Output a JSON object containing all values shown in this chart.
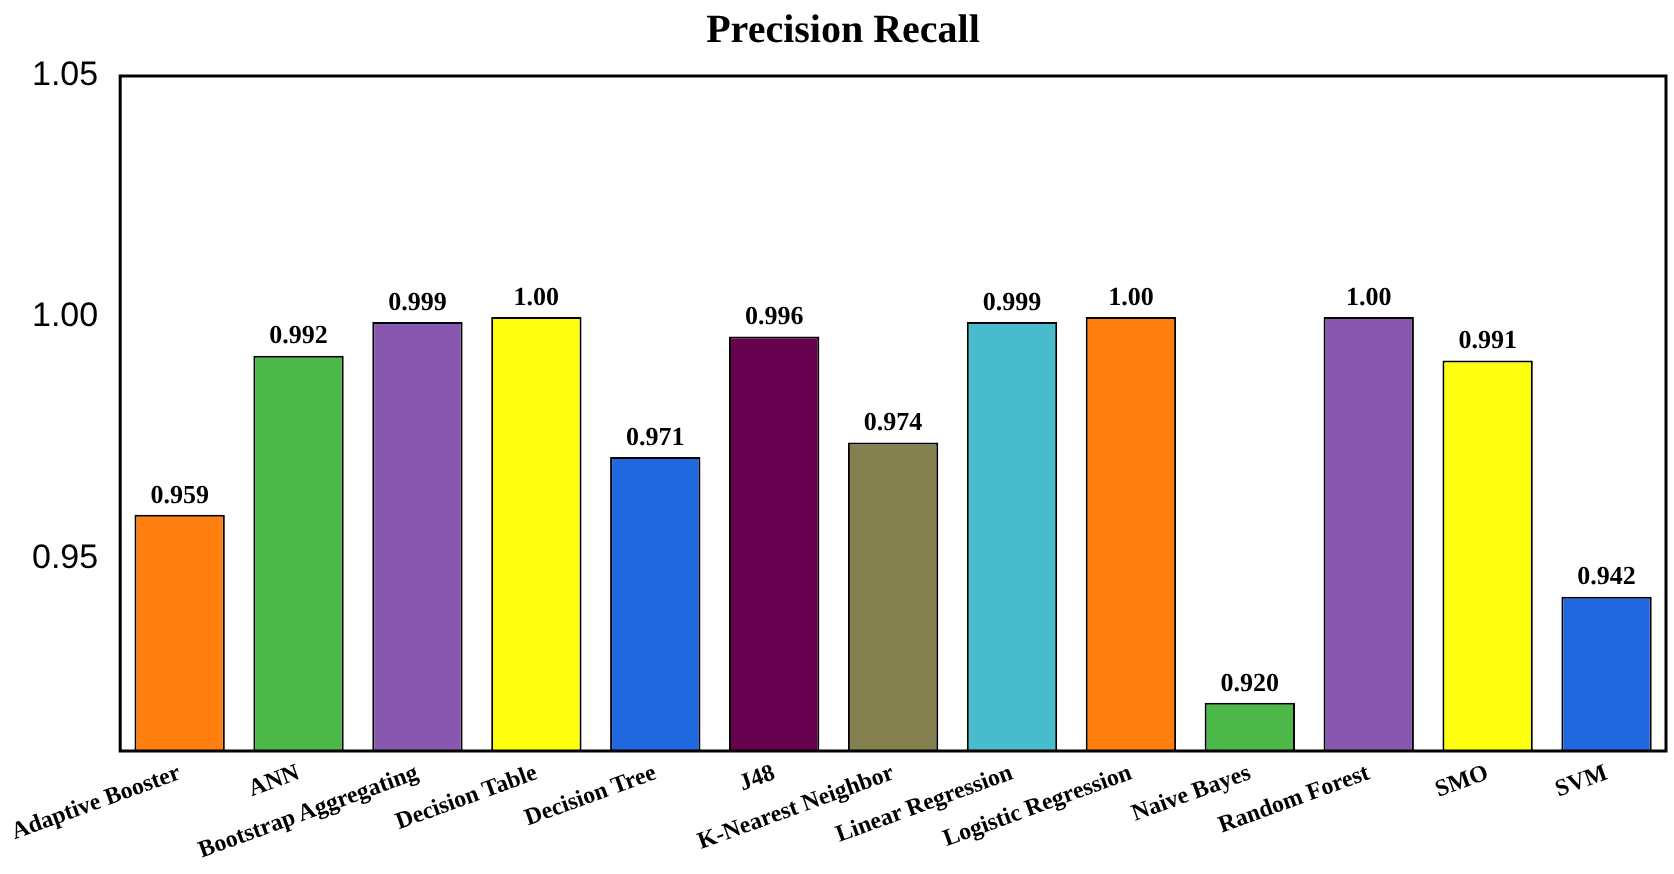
{
  "chart_data": {
    "type": "bar",
    "title": "Precision Recall",
    "categories": [
      "Adaptive Booster",
      "ANN",
      "Bootstrap Aggregating",
      "Decision Table",
      "Decision Tree",
      "J48",
      "K-Nearest Neighbor",
      "Linear Regression",
      "Logistic Regression",
      "Naive Bayes",
      "Random Forest",
      "SMO",
      "SVM"
    ],
    "values": [
      0.959,
      0.992,
      0.999,
      1.0,
      0.971,
      0.996,
      0.974,
      0.999,
      1.0,
      0.92,
      1.0,
      0.991,
      0.942
    ],
    "value_labels": [
      "0.959",
      "0.992",
      "0.999",
      "1.00",
      "0.971",
      "0.996",
      "0.974",
      "0.999",
      "1.00",
      "0.920",
      "1.00",
      "0.991",
      "0.942"
    ],
    "colors": [
      "#ff8010",
      "#4cb848",
      "#8858b0",
      "#ffff10",
      "#2068e0",
      "#680050",
      "#848050",
      "#48bccc",
      "#ff8010",
      "#4cb848",
      "#8858b0",
      "#ffff10",
      "#2068e0"
    ],
    "ylim": [
      0.91,
      1.05
    ],
    "yticks": [
      {
        "value": 0.95,
        "label": "0.95"
      },
      {
        "value": 1.0,
        "label": "1.00"
      },
      {
        "value": 1.05,
        "label": "1.05"
      }
    ],
    "grid": false,
    "legend": false
  }
}
